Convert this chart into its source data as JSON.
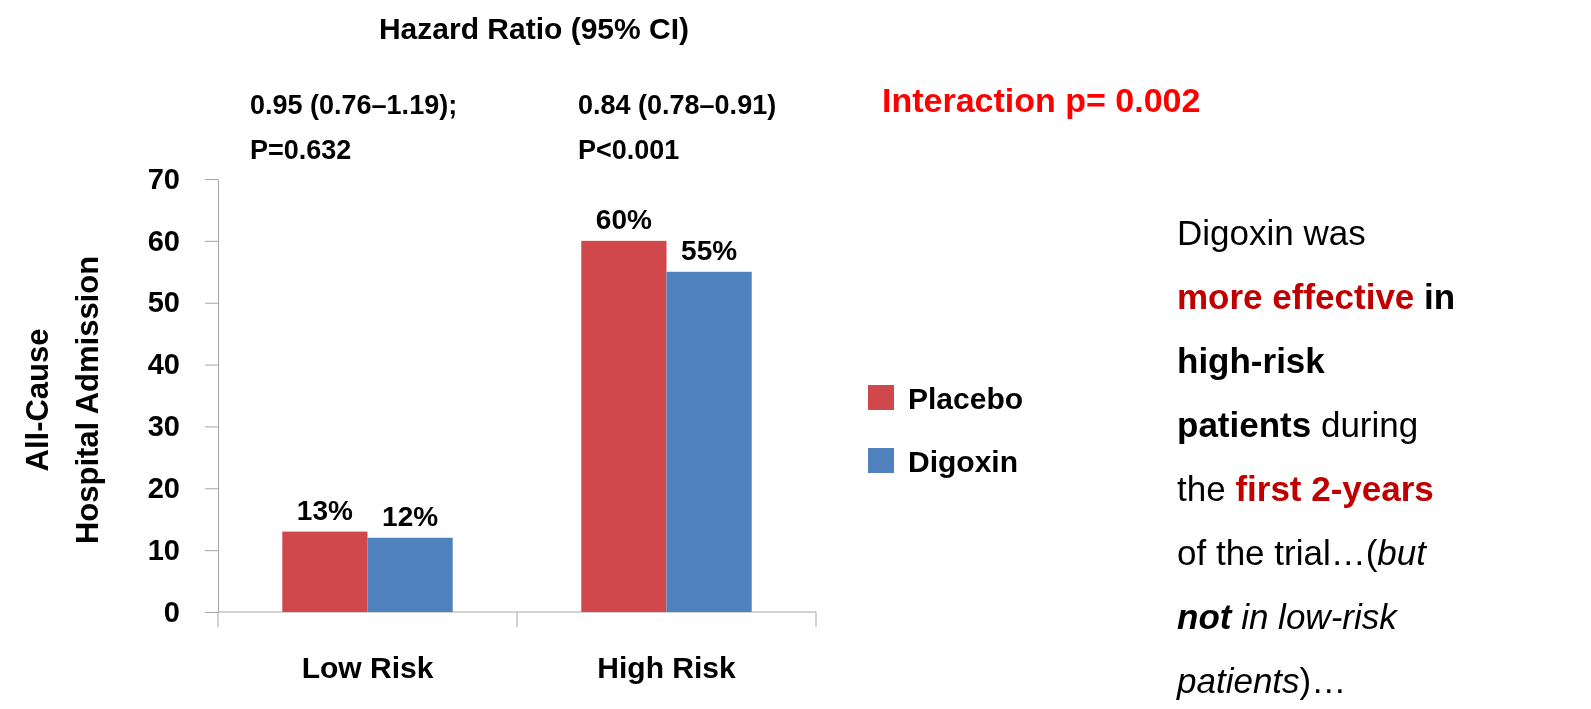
{
  "chart_data": {
    "type": "bar",
    "title": "Hazard Ratio (95% CI)",
    "ylabel": "All-Cause\nHospital Admission",
    "categories": [
      "Low Risk",
      "High Risk"
    ],
    "series": [
      {
        "name": "Placebo",
        "color": "#d0484b",
        "values": [
          13,
          60
        ],
        "value_labels": [
          "13%",
          "60%"
        ]
      },
      {
        "name": "Digoxin",
        "color": "#4f81bd",
        "values": [
          12,
          55
        ],
        "value_labels": [
          "12%",
          "55%"
        ]
      }
    ],
    "ylim": [
      0,
      70
    ],
    "yticks": [
      0,
      10,
      20,
      30,
      40,
      50,
      60,
      70
    ],
    "legend": "right",
    "annotations": [
      "0.95 (0.76–1.19);\nP=0.632",
      "0.84 (0.78–0.91)\nP<0.001",
      "Interaction p= 0.002",
      "Digoxin was\nmore effective in\nhigh-risk\npatients during\nthe first 2-years\nof the trial…(but\nnot in low-risk\npatients)…"
    ]
  }
}
